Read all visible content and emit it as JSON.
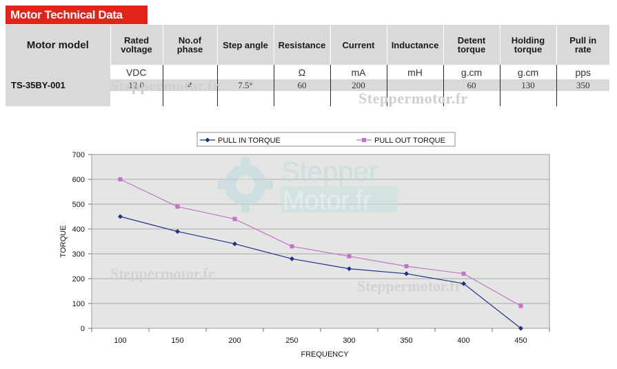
{
  "header": {
    "title": "Motor Technical Data"
  },
  "table": {
    "columns": [
      {
        "label_lines": [
          "Motor model"
        ]
      },
      {
        "label_lines": [
          "Rated",
          "voltage"
        ]
      },
      {
        "label_lines": [
          "No.of",
          "phase"
        ]
      },
      {
        "label_lines": [
          "Step angle"
        ]
      },
      {
        "label_lines": [
          "Resistance"
        ]
      },
      {
        "label_lines": [
          "Current"
        ]
      },
      {
        "label_lines": [
          "Inductance"
        ]
      },
      {
        "label_lines": [
          "Detent",
          "torque"
        ]
      },
      {
        "label_lines": [
          "Holding",
          "torque"
        ]
      },
      {
        "label_lines": [
          "Pull in",
          "rate"
        ]
      }
    ],
    "units": [
      "",
      "VDC",
      "",
      "",
      "Ω",
      "mA",
      "mH",
      "g.cm",
      "g.cm",
      "pps"
    ],
    "row": [
      "TS-35BY-001",
      "12.0",
      "4",
      "7.5°",
      "60",
      "200",
      "",
      "60",
      "130",
      "350"
    ]
  },
  "watermarks": {
    "text": "Steppermotor.fr",
    "logo_line1": "Stepper",
    "logo_line2": "Motor.fr"
  },
  "chart_data": {
    "type": "line",
    "categories": [
      100,
      150,
      200,
      250,
      300,
      350,
      400,
      450
    ],
    "series": [
      {
        "name": "PULL IN TORQUE",
        "values": [
          450,
          390,
          340,
          280,
          240,
          220,
          180,
          0
        ],
        "color": "#1f2f8c",
        "marker": "diamond"
      },
      {
        "name": "PULL OUT TORQUE",
        "values": [
          600,
          490,
          440,
          330,
          290,
          250,
          220,
          90
        ],
        "color": "#c472c8",
        "marker": "square"
      }
    ],
    "xlabel": "FREQUENCY",
    "ylabel": "TORQUE",
    "ylim": [
      0,
      700
    ],
    "yticks": [
      0,
      100,
      200,
      300,
      400,
      500,
      600,
      700
    ],
    "grid": true,
    "legend": "top",
    "plot_background": "#e4e6e4"
  }
}
